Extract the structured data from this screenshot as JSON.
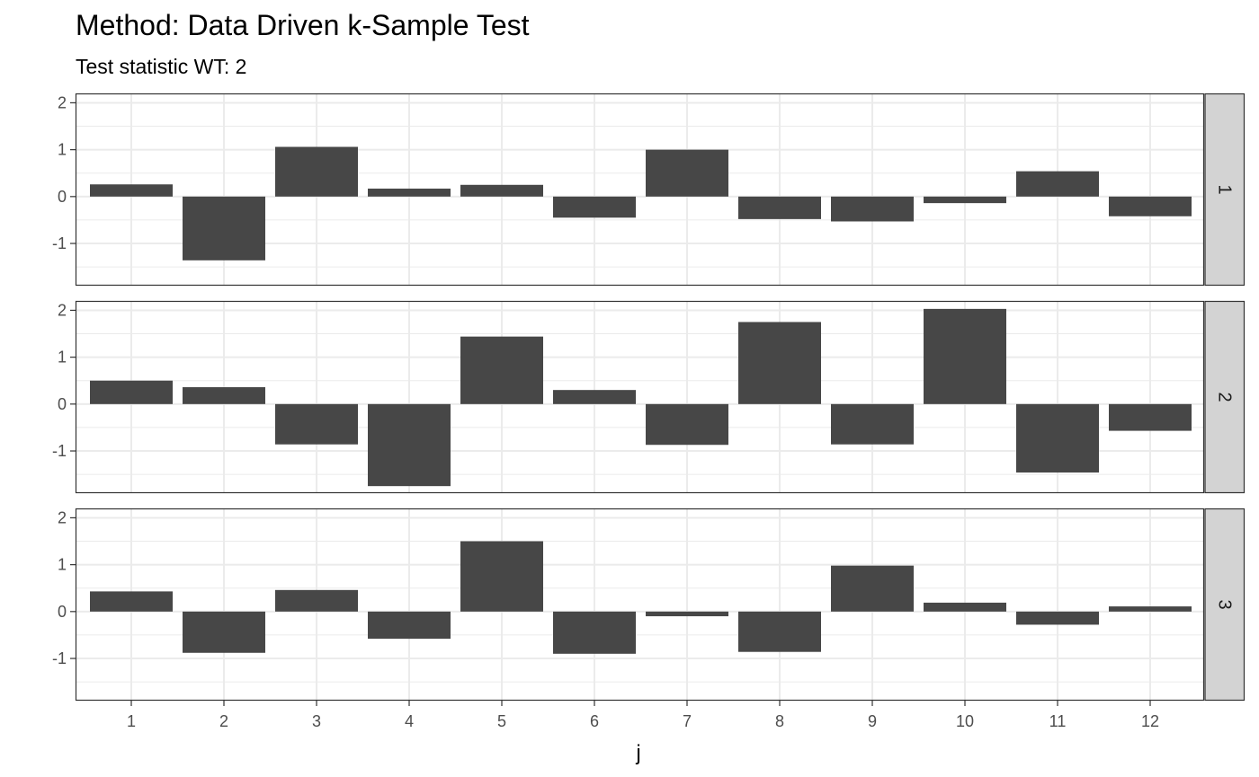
{
  "chart_data": {
    "type": "bar",
    "title": "Method: Data Driven k-Sample Test",
    "subtitle": "Test statistic WT: 2",
    "xlabel": "j",
    "ylabel": "",
    "categories": [
      "1",
      "2",
      "3",
      "4",
      "5",
      "6",
      "7",
      "8",
      "9",
      "10",
      "11",
      "12"
    ],
    "ylim": [
      -1.9,
      2.2
    ],
    "yticks": [
      2,
      1,
      0,
      -1
    ],
    "ytick_labels": [
      "2",
      "1",
      "0",
      "-1"
    ],
    "grid": true,
    "facets": [
      {
        "label": "1",
        "values": [
          0.26,
          -1.36,
          1.06,
          0.17,
          0.25,
          -0.45,
          1.0,
          -0.48,
          -0.53,
          -0.14,
          0.54,
          -0.42
        ]
      },
      {
        "label": "2",
        "values": [
          0.5,
          0.36,
          -0.86,
          -1.75,
          1.44,
          0.3,
          -0.87,
          1.75,
          -0.86,
          2.03,
          -1.46,
          -0.57
        ]
      },
      {
        "label": "3",
        "values": [
          0.43,
          -0.88,
          0.46,
          -0.58,
          1.5,
          -0.9,
          -0.1,
          -0.86,
          0.98,
          0.19,
          -0.28,
          0.11
        ]
      }
    ],
    "bar_color": "#474747",
    "strip_color": "#d3d3d3",
    "grid_color": "#ebebeb",
    "panel_border_color": "#333333"
  }
}
